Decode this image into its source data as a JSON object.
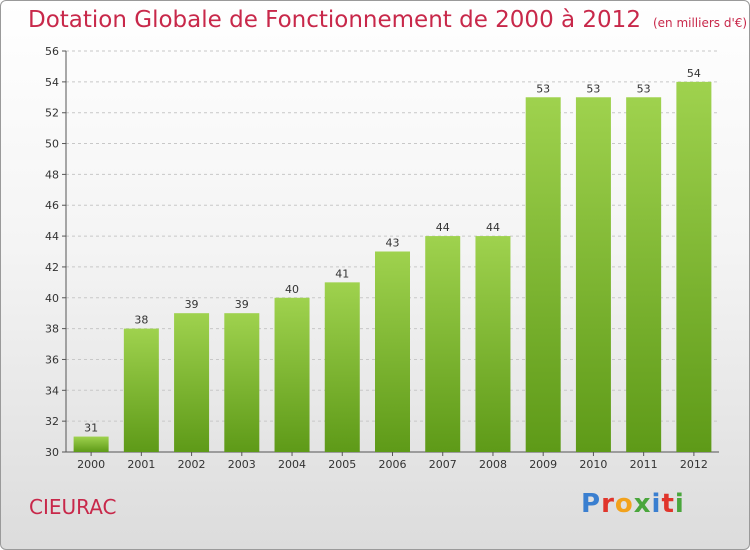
{
  "title": "Dotation Globale de Fonctionnement de 2000 à 2012",
  "subtitle": "(en milliers d'€)",
  "location": "CIEURAC",
  "logo": {
    "text": "Proxiti",
    "letter_colors": [
      "#3a7fd0",
      "#e0352b",
      "#f2a21c",
      "#4aa63c",
      "#3a7fd0",
      "#e0352b",
      "#4aa63c"
    ]
  },
  "colors": {
    "title": "#c8284a",
    "bar_top": "#9fd24e",
    "bar_bottom": "#5e9a18"
  },
  "chart_data": {
    "type": "bar",
    "title": "Dotation Globale de Fonctionnement de 2000 à 2012",
    "subtitle": "(en milliers d'€)",
    "categories": [
      "2000",
      "2001",
      "2002",
      "2003",
      "2004",
      "2005",
      "2006",
      "2007",
      "2008",
      "2009",
      "2010",
      "2011",
      "2012"
    ],
    "values": [
      31,
      38,
      39,
      39,
      40,
      41,
      43,
      44,
      44,
      53,
      53,
      53,
      54
    ],
    "ylim": [
      30,
      56
    ],
    "yticks": [
      30,
      32,
      34,
      36,
      38,
      40,
      42,
      44,
      46,
      48,
      50,
      52,
      54,
      56
    ],
    "grid": true,
    "legend": "none"
  }
}
